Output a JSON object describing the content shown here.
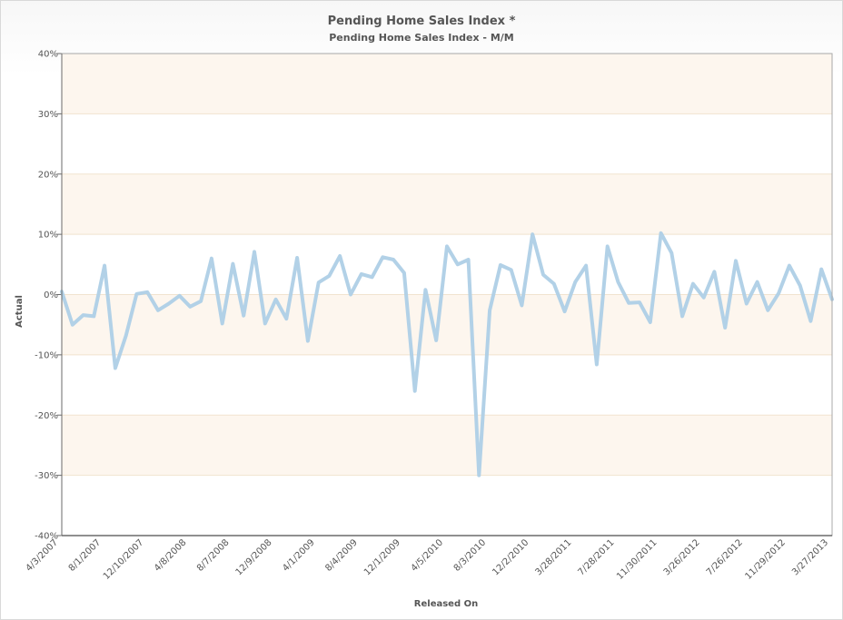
{
  "chart_data": {
    "type": "line",
    "title": "Pending Home Sales Index *",
    "subtitle": "Pending Home Sales Index - M/M",
    "xlabel": "Released On",
    "ylabel": "Actual",
    "ylim": [
      -40,
      40
    ],
    "y_ticks": [
      40,
      30,
      20,
      10,
      0,
      -10,
      -20,
      -30,
      -40
    ],
    "y_tick_labels": [
      "40%",
      "30%",
      "20%",
      "10%",
      "0%",
      "-10%",
      "-20%",
      "-30%",
      "-40%"
    ],
    "x_tick_labels": [
      "4/3/2007",
      "8/1/2007",
      "12/10/2007",
      "4/8/2008",
      "8/7/2008",
      "12/9/2008",
      "4/1/2009",
      "8/4/2009",
      "12/1/2009",
      "4/5/2010",
      "8/3/2010",
      "12/2/2010",
      "3/28/2011",
      "7/28/2011",
      "11/30/2011",
      "3/26/2012",
      "7/26/2012",
      "11/29/2012",
      "3/27/2013"
    ],
    "series": [
      {
        "color": "#aecfe6",
        "values": [
          0.5,
          -5.0,
          -3.4,
          -3.6,
          4.8,
          -12.2,
          -6.8,
          0.1,
          0.4,
          -2.6,
          -1.5,
          -0.2,
          -2.0,
          -1.1,
          6.0,
          -4.8,
          5.1,
          -3.5,
          7.1,
          -4.8,
          -0.8,
          -4.0,
          6.1,
          -7.7,
          2.0,
          3.1,
          6.4,
          0.0,
          3.4,
          2.9,
          6.2,
          5.8,
          3.6,
          -16.0,
          0.8,
          -7.6,
          8.0,
          5.0,
          5.8,
          -30.0,
          -2.6,
          4.9,
          4.1,
          -1.8,
          10.0,
          3.3,
          1.8,
          -2.8,
          2.1,
          4.8,
          -11.6,
          8.0,
          2.1,
          -1.4,
          -1.3,
          -4.6,
          10.2,
          6.9,
          -3.6,
          1.8,
          -0.5,
          3.8,
          -5.5,
          5.6,
          -1.5,
          2.1,
          -2.6,
          0.2,
          4.8,
          1.5,
          -4.4,
          4.2,
          -0.8
        ]
      }
    ],
    "grid": true,
    "legend": "none"
  },
  "colors": {
    "band_tint": "#fdf6ee",
    "grid_line": "#f1e3cf",
    "axis_line": "#6a6a6a",
    "text": "#555555"
  }
}
